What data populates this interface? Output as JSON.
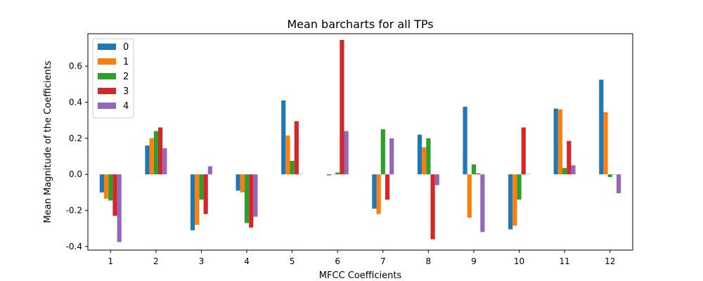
{
  "chart_data": {
    "type": "bar",
    "title": "Mean barcharts for all TPs",
    "xlabel": "MFCC Coefficients",
    "ylabel": "Mean Magnitude of the Coefficients",
    "categories": [
      "1",
      "2",
      "3",
      "4",
      "5",
      "6",
      "7",
      "8",
      "9",
      "10",
      "11",
      "12"
    ],
    "ylim": [
      -0.42,
      0.78
    ],
    "yticks": [
      "-0.4",
      "-0.2",
      "0.0",
      "0.2",
      "0.4",
      "0.6"
    ],
    "grid": false,
    "legend_position": "top-left",
    "series": [
      {
        "name": "0",
        "color": "#1f77b4",
        "values": [
          -0.1,
          0.16,
          -0.31,
          -0.09,
          0.41,
          -0.005,
          -0.19,
          0.22,
          0.375,
          -0.305,
          0.365,
          0.525
        ]
      },
      {
        "name": "1",
        "color": "#ff7f0e",
        "values": [
          -0.135,
          0.2,
          -0.28,
          -0.1,
          0.215,
          0.0,
          -0.22,
          0.15,
          -0.24,
          -0.285,
          0.36,
          0.345
        ]
      },
      {
        "name": "2",
        "color": "#2ca02c",
        "values": [
          -0.145,
          0.24,
          -0.14,
          -0.27,
          0.075,
          0.01,
          0.25,
          0.2,
          0.055,
          -0.14,
          0.035,
          -0.015
        ]
      },
      {
        "name": "3",
        "color": "#d62728",
        "values": [
          -0.23,
          0.26,
          -0.22,
          -0.295,
          0.295,
          0.745,
          -0.14,
          -0.36,
          0.005,
          0.26,
          0.185,
          0.0
        ]
      },
      {
        "name": "4",
        "color": "#9467bd",
        "values": [
          -0.375,
          0.145,
          0.045,
          -0.235,
          0.002,
          0.24,
          0.2,
          -0.06,
          -0.32,
          0.002,
          0.05,
          -0.105
        ]
      }
    ]
  }
}
